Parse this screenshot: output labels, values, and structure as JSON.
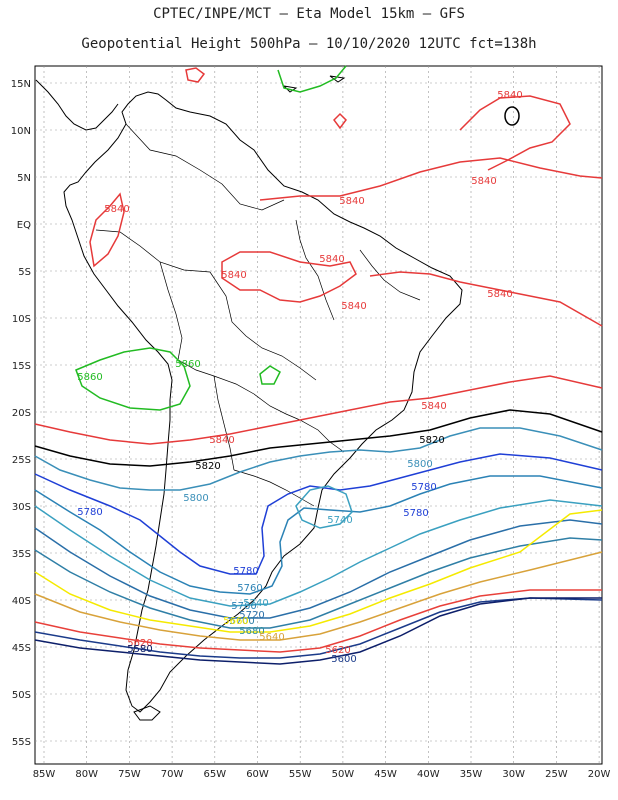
{
  "header": {
    "line1": "CPTEC/INPE/MCT –  Eta Model 15km – GFS",
    "line2": "Geopotential Height 500hPa – 10/10/2020 12UTC fct=138h"
  },
  "axes": {
    "lat_labels": [
      "15N",
      "10N",
      "5N",
      "EQ",
      "5S",
      "10S",
      "15S",
      "20S",
      "25S",
      "30S",
      "35S",
      "40S",
      "45S",
      "50S",
      "55S"
    ],
    "lon_labels": [
      "85W",
      "80W",
      "75W",
      "70W",
      "65W",
      "60W",
      "55W",
      "50W",
      "45W",
      "40W",
      "35W",
      "30W",
      "25W",
      "20W"
    ]
  },
  "contour_colors": {
    "5580": "#0d1f6a",
    "5600": "#1b3b8a",
    "5620": "#e8403a",
    "5640": "#d8a23a",
    "5660": "#f5ea00",
    "5680": "#2e8ca0",
    "5700": "#2f7fa6",
    "5720": "#2a6fa8",
    "5740": "#3aa0c0",
    "5760": "#2b82b5",
    "5780": "#1f3fd6",
    "5800": "#3a8fb8",
    "5820": "#000000",
    "5840": "#e63a3a",
    "5860": "#22bb22"
  },
  "contour_labels": [
    {
      "text": "5840",
      "level": "5840"
    },
    {
      "text": "5840",
      "level": "5840"
    },
    {
      "text": "5840",
      "level": "5840"
    },
    {
      "text": "5840",
      "level": "5840"
    },
    {
      "text": "5840",
      "level": "5840"
    },
    {
      "text": "5840",
      "level": "5840"
    },
    {
      "text": "5840",
      "level": "5840"
    },
    {
      "text": "5840",
      "level": "5840"
    },
    {
      "text": "5840",
      "level": "5840"
    },
    {
      "text": "5840",
      "level": "5840"
    },
    {
      "text": "5860",
      "level": "5860"
    },
    {
      "text": "5860",
      "level": "5860"
    },
    {
      "text": "5820",
      "level": "5820"
    },
    {
      "text": "5820",
      "level": "5820"
    },
    {
      "text": "5800",
      "level": "5800"
    },
    {
      "text": "5800",
      "level": "5800"
    },
    {
      "text": "5780",
      "level": "5780"
    },
    {
      "text": "5780",
      "level": "5780"
    },
    {
      "text": "5780",
      "level": "5780"
    },
    {
      "text": "5780",
      "level": "5780"
    },
    {
      "text": "5760",
      "level": "5760"
    },
    {
      "text": "5760",
      "level": "5760"
    },
    {
      "text": "5740",
      "level": "5740"
    },
    {
      "text": "5740",
      "level": "5740"
    },
    {
      "text": "5720",
      "level": "5720"
    },
    {
      "text": "5700",
      "level": "5700"
    },
    {
      "text": "5680",
      "level": "5680"
    },
    {
      "text": "5660",
      "level": "5660"
    },
    {
      "text": "5640",
      "level": "5640"
    },
    {
      "text": "5620",
      "level": "5620"
    },
    {
      "text": "5620",
      "level": "5620"
    },
    {
      "text": "5600",
      "level": "5600"
    },
    {
      "text": "5580",
      "level": "5580"
    }
  ]
}
